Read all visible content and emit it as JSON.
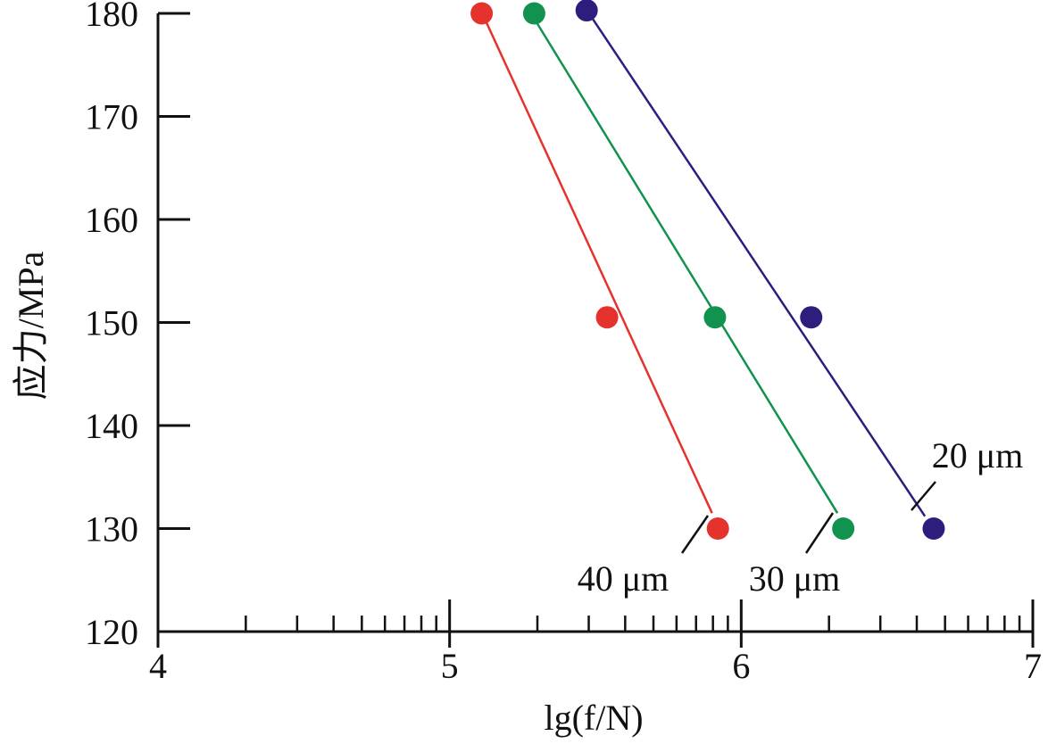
{
  "chart_data": {
    "type": "scatter",
    "title": "",
    "xlabel": "lg(f/N)",
    "ylabel": "应力/MPa",
    "xlim": [
      4,
      7
    ],
    "ylim": [
      120,
      180
    ],
    "x_scale": "log-cycle minor ticks",
    "x_ticks": [
      "4",
      "5",
      "6",
      "7"
    ],
    "y_ticks": [
      "120",
      "130",
      "140",
      "150",
      "160",
      "170",
      "180"
    ],
    "grid": false,
    "legend": "none",
    "series": [
      {
        "name": "40 μm",
        "color": "#e5322d",
        "points": [
          [
            5.11,
            180
          ],
          [
            5.54,
            150.5
          ],
          [
            5.92,
            130
          ]
        ],
        "fit": [
          [
            5.12,
            179.5
          ],
          [
            5.9,
            131.5
          ]
        ]
      },
      {
        "name": "30 μm",
        "color": "#12924f",
        "points": [
          [
            5.29,
            180
          ],
          [
            5.91,
            150.5
          ],
          [
            6.35,
            130
          ]
        ],
        "fit": [
          [
            5.29,
            179.5
          ],
          [
            6.33,
            131.5
          ]
        ]
      },
      {
        "name": "20 μm",
        "color": "#2e1d7d",
        "points": [
          [
            5.47,
            180.3
          ],
          [
            6.24,
            150.5
          ],
          [
            6.66,
            130
          ]
        ],
        "fit": [
          [
            5.49,
            179.5
          ],
          [
            6.63,
            131.2
          ]
        ]
      }
    ]
  }
}
